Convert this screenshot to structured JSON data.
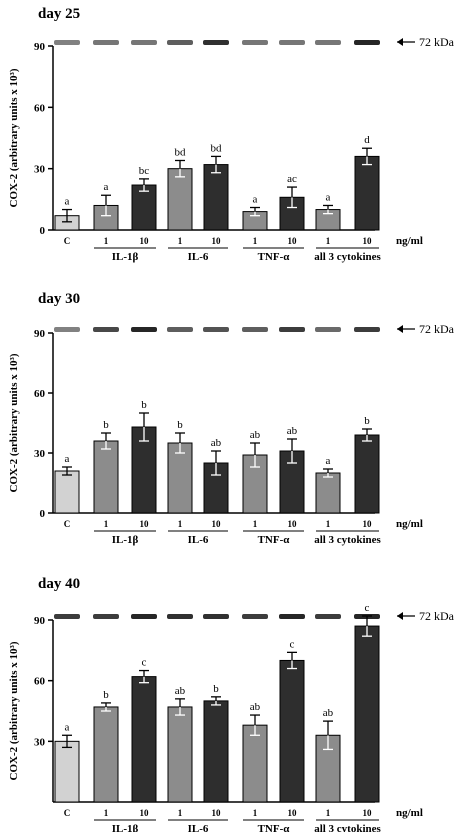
{
  "colors": {
    "control": "#d2d2d2",
    "low_dose": "#8c8c8c",
    "high_dose": "#2e2e2e",
    "axis": "#000000",
    "band": "#1a1a1a"
  },
  "band_marker": "72 kDa",
  "unit_label": "ng/ml",
  "ylabel": "COX-2 (arbitrary units x 10³)",
  "chart_data": [
    {
      "type": "bar",
      "title": "day 25",
      "ylabel": "COX-2 (arbitrary units x 10³)",
      "ylim": [
        0,
        90
      ],
      "yticks": [
        0,
        30,
        60,
        90
      ],
      "categories": [
        "C",
        "1",
        "10",
        "1",
        "10",
        "1",
        "10",
        "1",
        "10"
      ],
      "groups": [
        "IL-1β",
        "IL-6",
        "TNF-α",
        "all 3 cytokines"
      ],
      "values": [
        7,
        12,
        22,
        30,
        32,
        9,
        16,
        10,
        36
      ],
      "errors": [
        3,
        5,
        3,
        4,
        4,
        2,
        5,
        2,
        4
      ],
      "letters": [
        "a",
        "a",
        "bc",
        "bd",
        "bd",
        "a",
        "ac",
        "a",
        "d"
      ],
      "band_intensity": [
        0.55,
        0.6,
        0.6,
        0.7,
        0.9,
        0.6,
        0.6,
        0.6,
        0.95
      ]
    },
    {
      "type": "bar",
      "title": "day 30",
      "ylabel": "COX-2 (arbitrary units x 10³)",
      "ylim": [
        0,
        90
      ],
      "yticks": [
        0,
        30,
        60,
        90
      ],
      "categories": [
        "C",
        "1",
        "10",
        "1",
        "10",
        "1",
        "10",
        "1",
        "10"
      ],
      "groups": [
        "IL-1β",
        "IL-6",
        "TNF-α",
        "all 3 cytokines"
      ],
      "values": [
        21,
        36,
        43,
        35,
        25,
        29,
        31,
        20,
        39
      ],
      "errors": [
        2,
        4,
        7,
        5,
        6,
        6,
        6,
        2,
        3
      ],
      "letters": [
        "a",
        "b",
        "b",
        "b",
        "ab",
        "ab",
        "ab",
        "a",
        "b"
      ],
      "band_intensity": [
        0.55,
        0.8,
        0.95,
        0.7,
        0.75,
        0.7,
        0.85,
        0.65,
        0.85
      ]
    },
    {
      "type": "bar",
      "title": "day 40",
      "ylabel": "COX-2 (arbitrary units x 10³)",
      "ylim": [
        0,
        90
      ],
      "yticks": [
        30,
        60,
        90
      ],
      "categories": [
        "C",
        "1",
        "10",
        "1",
        "10",
        "1",
        "10",
        "1",
        "10"
      ],
      "groups": [
        "IL-1β",
        "IL-6",
        "TNF-α",
        "all 3 cytokines"
      ],
      "values": [
        30,
        47,
        62,
        47,
        50,
        38,
        70,
        33,
        87
      ],
      "errors": [
        3,
        2,
        3,
        4,
        2,
        5,
        4,
        7,
        5
      ],
      "letters": [
        "a",
        "b",
        "c",
        "ab",
        "b",
        "ab",
        "c",
        "ab",
        "c"
      ],
      "band_intensity": [
        0.85,
        0.85,
        0.95,
        0.9,
        0.9,
        0.85,
        0.95,
        0.85,
        0.95
      ]
    }
  ]
}
